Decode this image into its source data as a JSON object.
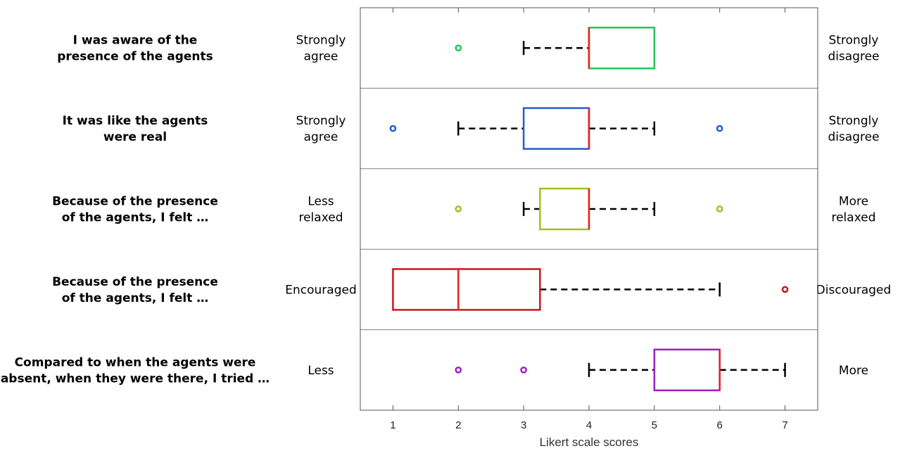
{
  "chart_data": {
    "type": "box",
    "xlabel": "Likert scale scores",
    "xlim": [
      0.5,
      7.5
    ],
    "xticks": [
      1,
      2,
      3,
      4,
      5,
      6,
      7
    ],
    "median_color": "#e8201f",
    "whisker_color": "#000000",
    "rows": [
      {
        "question": [
          "I was aware of the",
          "presence of the agents"
        ],
        "left_anchor": [
          "Strongly",
          "agree"
        ],
        "right_anchor": [
          "Strongly",
          "disagree"
        ],
        "color": "#22c55a",
        "q1": 4,
        "median": 4,
        "q3": 5,
        "whisker_low": 3,
        "whisker_high": 5,
        "outliers": [
          2
        ]
      },
      {
        "question": [
          "It was like the agents",
          "were real"
        ],
        "left_anchor": [
          "Strongly",
          "agree"
        ],
        "right_anchor": [
          "Strongly",
          "disagree"
        ],
        "color": "#1f5fd1",
        "q1": 3,
        "median": 4,
        "q3": 4,
        "whisker_low": 2,
        "whisker_high": 5,
        "outliers": [
          1,
          6
        ]
      },
      {
        "question": [
          "Because of the presence",
          "of the agents, I felt …"
        ],
        "left_anchor": [
          "Less",
          "relaxed"
        ],
        "right_anchor": [
          "More",
          "relaxed"
        ],
        "color": "#a3c11a",
        "q1": 3.25,
        "median": 4,
        "q3": 4,
        "whisker_low": 3,
        "whisker_high": 5,
        "outliers": [
          2,
          6
        ]
      },
      {
        "question": [
          "Because of the presence",
          "of the agents, I felt …"
        ],
        "left_anchor": [
          "Encouraged"
        ],
        "right_anchor": [
          "Discouraged"
        ],
        "color": "#c8161d",
        "q1": 1,
        "median": 2,
        "q3": 3.25,
        "whisker_low": 1,
        "whisker_high": 6,
        "outliers": [
          7
        ]
      },
      {
        "question": [
          "Compared to when the agents were",
          "absent, when they were there, I tried …"
        ],
        "left_anchor": [
          "Less"
        ],
        "right_anchor": [
          "More"
        ],
        "color": "#9b1fc9",
        "q1": 5,
        "median": 6,
        "q3": 6,
        "whisker_low": 4,
        "whisker_high": 7,
        "outliers": [
          2,
          3
        ]
      }
    ]
  }
}
